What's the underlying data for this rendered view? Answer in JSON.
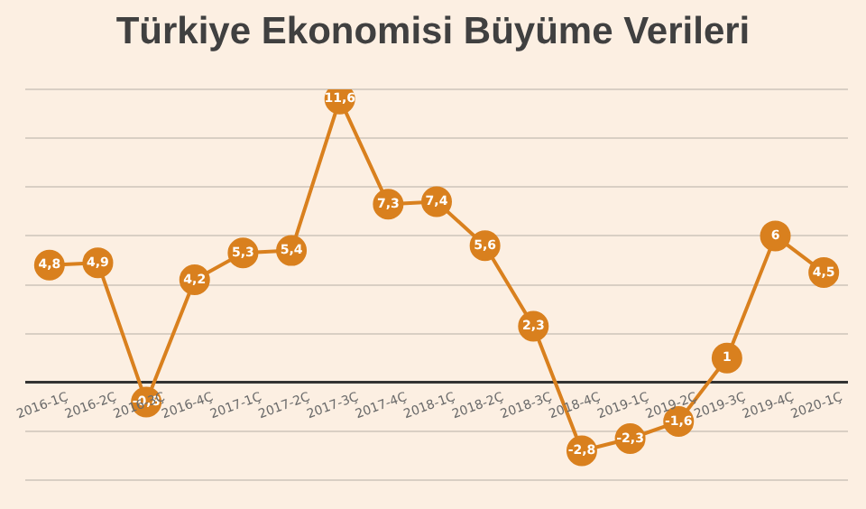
{
  "chart_data": {
    "type": "line",
    "title": "Türkiye Ekonomisi Büyüme Verileri",
    "categories": [
      "2016-1Ç",
      "2016-2Ç",
      "2016-3Ç",
      "2016-4Ç",
      "2017-1Ç",
      "2017-2Ç",
      "2017-3Ç",
      "2017-4Ç",
      "2018-1Ç",
      "2018-2Ç",
      "2018-3Ç",
      "2018-4Ç",
      "2019-1Ç",
      "2019-2Ç",
      "2019-3Ç",
      "2019-4Ç",
      "2020-1Ç"
    ],
    "values": [
      4.8,
      4.9,
      -0.8,
      4.2,
      5.3,
      5.4,
      11.6,
      7.3,
      7.4,
      5.6,
      2.3,
      -2.8,
      -2.3,
      -1.6,
      1,
      6,
      4.5
    ],
    "value_labels": [
      "4,8",
      "4,9",
      "-0,8",
      "4,2",
      "5,3",
      "5,4",
      "11,6",
      "7,3",
      "7,4",
      "5,6",
      "2,3",
      "-2,8",
      "-2,3",
      "-1,6",
      "1",
      "6",
      "4,5"
    ],
    "color": "#d9801e",
    "ylim": [
      -4,
      12
    ],
    "yticks": [
      {
        "value": -4,
        "label": null
      },
      {
        "value": -2,
        "label": null
      },
      {
        "value": 0,
        "label": null
      },
      {
        "value": 2,
        "label": null
      },
      {
        "value": 4,
        "label": null
      },
      {
        "value": 6,
        "label": null
      },
      {
        "value": 8,
        "label": null
      },
      {
        "value": 10,
        "label": null
      },
      {
        "value": 12,
        "label": null
      }
    ],
    "tick_labels": "x",
    "grid": "y",
    "marker": "circle",
    "line_style": "solid",
    "legend": false
  }
}
